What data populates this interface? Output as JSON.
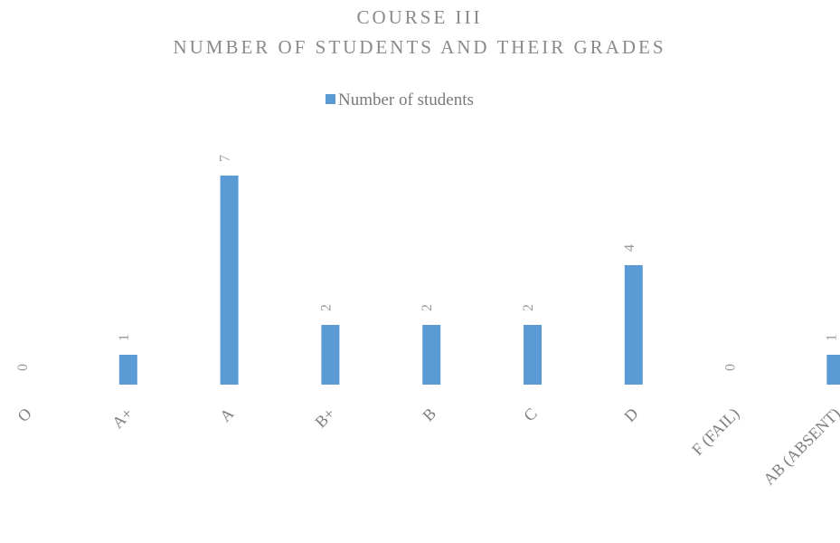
{
  "chart_data": {
    "type": "bar",
    "title": [
      "COURSE III",
      "NUMBER OF STUDENTS AND THEIR GRADES"
    ],
    "categories": [
      "O",
      "A+",
      "A",
      "B+",
      "B",
      "C",
      "D",
      "F (FAIL)",
      "AB (ABSENT)"
    ],
    "series": [
      {
        "name": "Number of students",
        "color": "#5b9bd5",
        "values": [
          0,
          1,
          7,
          2,
          2,
          2,
          4,
          0,
          1
        ]
      }
    ],
    "ylim": [
      0,
      8
    ]
  }
}
